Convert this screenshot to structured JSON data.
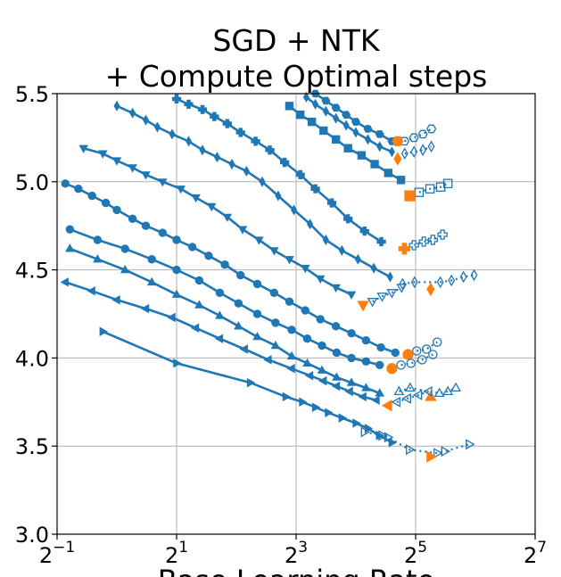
{
  "chart_data": {
    "type": "line",
    "title": [
      "SGD + NTK",
      "+ Compute Optimal steps"
    ],
    "xlabel": "Base Learning Rate",
    "ylabel": "",
    "x_scale": "log2",
    "xlim": [
      0.5,
      128
    ],
    "ylim": [
      3.0,
      5.5
    ],
    "x_ticks": [
      {
        "base": "2",
        "exp": "−1"
      },
      {
        "base": "2",
        "exp": "1"
      },
      {
        "base": "2",
        "exp": "3"
      },
      {
        "base": "2",
        "exp": "5"
      },
      {
        "base": "2",
        "exp": "7"
      }
    ],
    "y_ticks": [
      "3.0",
      "3.5",
      "4.0",
      "4.5",
      "5.0",
      "5.5"
    ],
    "grid": true,
    "colors": {
      "line": "#1f77b4",
      "optimum": "#ff7f0e",
      "grid": "#b0b0b0"
    },
    "series": [
      {
        "marker": "hexagon",
        "x": [
          10.0,
          11.3,
          12.7,
          14.3,
          16.0,
          18.4,
          21.1,
          24.3
        ],
        "y": [
          5.5,
          5.46,
          5.42,
          5.38,
          5.34,
          5.3,
          5.27,
          5.23
        ],
        "optimum": {
          "x": 26.0,
          "y": 5.23
        },
        "divergent": {
          "x": [
            28.1,
            31.4,
            34.8,
            38.4
          ],
          "y": [
            5.23,
            5.25,
            5.27,
            5.3
          ]
        }
      },
      {
        "marker": "thin_diamond",
        "x": [
          9.0,
          10.0,
          11.3,
          12.7,
          14.3,
          16.0,
          18.4,
          21.1,
          24.3
        ],
        "y": [
          5.48,
          5.44,
          5.4,
          5.36,
          5.32,
          5.28,
          5.24,
          5.2,
          5.17
        ],
        "optimum": {
          "x": 26.0,
          "y": 5.13
        },
        "divergent": {
          "x": [
            28.2,
            31.4,
            34.8,
            38.4
          ],
          "y": [
            5.16,
            5.17,
            5.18,
            5.2
          ]
        }
      },
      {
        "marker": "square",
        "x": [
          7.4,
          8.4,
          9.6,
          11.0,
          12.7,
          14.6,
          17.1,
          19.9,
          23.3,
          27.0
        ],
        "y": [
          5.43,
          5.38,
          5.34,
          5.29,
          5.24,
          5.19,
          5.15,
          5.1,
          5.05,
          5.01
        ],
        "optimum": {
          "x": 29.9,
          "y": 4.92
        },
        "divergent": {
          "x": [
            33.3,
            37.8,
            42.8,
            46.5
          ],
          "y": [
            4.94,
            4.96,
            4.97,
            4.99
          ]
        }
      },
      {
        "marker": "plus",
        "x": [
          2.0,
          2.3,
          2.7,
          3.1,
          3.6,
          4.2,
          5.0,
          5.9,
          7.0,
          8.4,
          10.0,
          12.1,
          14.6,
          17.7,
          21.5
        ],
        "y": [
          5.47,
          5.44,
          5.41,
          5.37,
          5.33,
          5.28,
          5.23,
          5.18,
          5.11,
          5.04,
          4.96,
          4.88,
          4.79,
          4.72,
          4.66
        ],
        "optimum": {
          "x": 28.1,
          "y": 4.62
        },
        "divergent": {
          "x": [
            31.4,
            35.2,
            39.1,
            43.7
          ],
          "y": [
            4.64,
            4.66,
            4.67,
            4.7
          ]
        }
      },
      {
        "marker": "thin_diamond",
        "x": [
          1.0,
          1.2,
          1.4,
          1.6,
          1.9,
          2.3,
          2.7,
          3.2,
          3.8,
          4.5,
          5.4,
          6.5,
          7.8,
          9.4,
          11.3,
          13.6,
          16.4,
          19.7,
          23.8
        ],
        "y": [
          5.43,
          5.39,
          5.35,
          5.31,
          5.27,
          5.23,
          5.18,
          5.14,
          5.1,
          5.06,
          5.0,
          4.92,
          4.84,
          4.76,
          4.67,
          4.61,
          4.56,
          4.51,
          4.46
        ],
        "optimum": {
          "x": 38.1,
          "y": 4.39
        },
        "divergent": {
          "x": [
            27.5,
            31.6,
            42.6,
            48.5,
            55.7,
            63.0
          ],
          "y": [
            4.42,
            4.43,
            4.43,
            4.44,
            4.46,
            4.47
          ]
        }
      },
      {
        "marker": "triangle_down",
        "x": [
          0.68,
          0.85,
          1.0,
          1.2,
          1.4,
          1.7,
          2.1,
          2.5,
          3.0,
          3.6,
          4.3,
          5.2,
          6.2,
          7.4,
          8.9,
          10.6,
          12.7,
          15.2
        ],
        "y": [
          5.19,
          5.16,
          5.12,
          5.08,
          5.04,
          5.0,
          4.96,
          4.91,
          4.86,
          4.8,
          4.73,
          4.67,
          4.61,
          4.56,
          4.51,
          4.45,
          4.4,
          4.36
        ],
        "optimum": {
          "x": 17.4,
          "y": 4.3
        },
        "divergent": {
          "x": [
            19.4,
            21.7,
            24.3,
            27.2
          ],
          "y": [
            4.32,
            4.35,
            4.37,
            4.4
          ]
        }
      },
      {
        "marker": "circle",
        "x": [
          0.55,
          0.64,
          0.75,
          0.88,
          1.0,
          1.2,
          1.4,
          1.7,
          2.0,
          2.4,
          2.9,
          3.5,
          4.2,
          5.1,
          6.2,
          7.4,
          8.9,
          10.6,
          12.7,
          15.2,
          18.0,
          21.4,
          25.3
        ],
        "y": [
          4.99,
          4.96,
          4.92,
          4.88,
          4.84,
          4.79,
          4.75,
          4.71,
          4.67,
          4.63,
          4.58,
          4.53,
          4.47,
          4.42,
          4.37,
          4.32,
          4.27,
          4.22,
          4.18,
          4.14,
          4.1,
          4.06,
          4.03
        ],
        "optimum": {
          "x": 29.3,
          "y": 4.02
        },
        "divergent": {
          "x": [
            32.4,
            36.3,
            41.1
          ],
          "y": [
            4.04,
            4.05,
            4.09
          ]
        }
      },
      {
        "marker": "circle",
        "x": [
          0.58,
          0.8,
          1.1,
          1.5,
          2.0,
          2.6,
          3.3,
          4.1,
          5.1,
          6.3,
          7.6,
          9.1,
          10.8,
          12.8,
          15.2,
          18.0,
          21.1
        ],
        "y": [
          4.73,
          4.67,
          4.62,
          4.56,
          4.5,
          4.44,
          4.37,
          4.31,
          4.25,
          4.2,
          4.16,
          4.11,
          4.07,
          4.03,
          4.0,
          3.98,
          3.96
        ],
        "optimum": {
          "x": 24.3,
          "y": 3.94
        },
        "divergent": {
          "x": [
            27.0,
            30.3,
            34.5,
            39.1
          ],
          "y": [
            3.96,
            3.97,
            3.99,
            4.02
          ]
        }
      },
      {
        "marker": "triangle_up",
        "x": [
          0.58,
          0.8,
          1.1,
          1.5,
          2.0,
          2.6,
          3.3,
          4.1,
          5.1,
          6.3,
          7.6,
          9.1,
          10.8,
          12.8,
          15.2,
          18.0,
          21.1
        ],
        "y": [
          4.62,
          4.56,
          4.5,
          4.43,
          4.36,
          4.3,
          4.24,
          4.18,
          4.12,
          4.07,
          4.01,
          3.97,
          3.93,
          3.89,
          3.86,
          3.83,
          3.8
        ],
        "optimum": {
          "x": 38.1,
          "y": 3.78
        },
        "divergent": {
          "x": [
            26.4,
            30.0,
            42.2,
            46.5,
            51.0
          ],
          "y": [
            3.81,
            3.83,
            3.8,
            3.81,
            3.83
          ]
        }
      },
      {
        "marker": "triangle_left",
        "x": [
          0.55,
          0.75,
          1.0,
          1.4,
          1.9,
          2.5,
          3.3,
          4.4,
          5.8,
          7.6,
          9.4,
          11.0,
          12.8,
          14.9,
          17.4,
          20.3
        ],
        "y": [
          4.43,
          4.38,
          4.33,
          4.28,
          4.23,
          4.17,
          4.11,
          4.05,
          3.99,
          3.94,
          3.9,
          3.87,
          3.84,
          3.81,
          3.78,
          3.76
        ],
        "optimum": {
          "x": 23.2,
          "y": 3.73
        },
        "divergent": {
          "x": [
            25.7,
            29.1,
            33.1,
            37.2
          ],
          "y": [
            3.75,
            3.77,
            3.79,
            3.81
          ]
        }
      },
      {
        "marker": "triangle_right",
        "x": [
          0.85,
          2.0,
          4.7,
          7.1,
          8.6,
          10.0,
          11.6,
          13.6,
          16.0,
          18.4,
          21.0,
          24.3
        ],
        "y": [
          4.15,
          3.97,
          3.86,
          3.78,
          3.75,
          3.72,
          3.69,
          3.66,
          3.63,
          3.6,
          3.56,
          3.52
        ],
        "optimum": {
          "x": 38.1,
          "y": 3.44
        },
        "divergent": {
          "x": [
            17.7,
            21.7,
            23.2,
            29.8,
            41.1,
            44.9,
            59.7
          ],
          "y": [
            3.58,
            3.56,
            3.55,
            3.48,
            3.46,
            3.47,
            3.51
          ]
        }
      }
    ]
  }
}
